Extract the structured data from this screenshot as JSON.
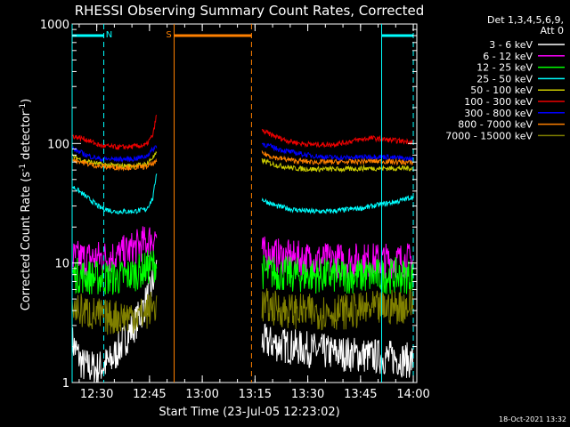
{
  "chart_data": {
    "type": "line",
    "title": "RHESSI Observing Summary Count Rates, Corrected",
    "xlabel": "Start Time (23-Jul-05 12:23:02)",
    "ylabel": "Corrected Count Rate (s⁻¹ detector⁻¹)",
    "ylabel_parts": [
      "Corrected Count Rate (s",
      "-1",
      " detector",
      "-1",
      ")"
    ],
    "yscale": "log",
    "ylim": [
      1,
      1000
    ],
    "xlim": [
      "12:23",
      "14:01"
    ],
    "x_ticks": [
      "12:30",
      "12:45",
      "13:00",
      "13:15",
      "13:30",
      "13:45",
      "14:00"
    ],
    "y_ticks": [
      "1",
      "10",
      "100",
      "1000"
    ],
    "legend_header": [
      "Det 1,3,4,5,6,9,",
      "Att 0"
    ],
    "legend_position": "right",
    "date_stamp": "18-Oct-2021 13:32",
    "series": [
      {
        "name": "3 - 6 keV",
        "color": "#ffffff",
        "segments": [
          {
            "x": [
              "12:23",
              "12:26",
              "12:30",
              "12:34",
              "12:38",
              "12:42",
              "12:45",
              "12:47"
            ],
            "y": [
              2.2,
              1.4,
              1.3,
              1.5,
              2.3,
              3.5,
              5.5,
              9
            ]
          },
          {
            "x": [
              "13:17",
              "13:25",
              "13:35",
              "13:45",
              "13:55",
              "14:00"
            ],
            "y": [
              2.2,
              2.0,
              1.8,
              1.7,
              1.6,
              1.5
            ]
          }
        ]
      },
      {
        "name": "6 - 12 keV",
        "color": "#ff00ff",
        "segments": [
          {
            "x": [
              "12:23",
              "12:30",
              "12:36",
              "12:40",
              "12:44",
              "12:47"
            ],
            "y": [
              11,
              11,
              11.5,
              13,
              15,
              17
            ]
          },
          {
            "x": [
              "13:17",
              "13:25",
              "13:35",
              "13:45",
              "13:55",
              "14:00"
            ],
            "y": [
              12,
              11,
              10.5,
              10.5,
              10.5,
              10.5
            ]
          }
        ]
      },
      {
        "name": "12 - 25 keV",
        "color": "#00ff00",
        "segments": [
          {
            "x": [
              "12:23",
              "12:30",
              "12:36",
              "12:40",
              "12:44",
              "12:47"
            ],
            "y": [
              8,
              7.5,
              7.5,
              8,
              9,
              10
            ]
          },
          {
            "x": [
              "13:17",
              "13:25",
              "13:35",
              "13:45",
              "13:55",
              "14:00"
            ],
            "y": [
              8.5,
              8,
              7.8,
              7.8,
              7.8,
              7.8
            ]
          }
        ]
      },
      {
        "name": "25 - 50 keV",
        "color": "#00ffff",
        "segments": [
          {
            "x": [
              "12:23",
              "12:27",
              "12:31",
              "12:35",
              "12:40",
              "12:44",
              "12:46",
              "12:47"
            ],
            "y": [
              44,
              36,
              29,
              27,
              27,
              28,
              35,
              58
            ]
          },
          {
            "x": [
              "13:17",
              "13:21",
              "13:26",
              "13:31",
              "13:36",
              "13:41",
              "13:46",
              "13:51",
              "13:56",
              "14:00"
            ],
            "y": [
              34,
              30,
              28,
              27,
              27,
              28,
              29,
              31,
              33,
              36
            ]
          }
        ]
      },
      {
        "name": "50 - 100 keV",
        "color": "#cccc00",
        "segments": [
          {
            "x": [
              "12:23",
              "12:27",
              "12:31",
              "12:36",
              "12:40",
              "12:44",
              "12:47"
            ],
            "y": [
              78,
              71,
              67,
              65,
              65,
              67,
              82
            ]
          },
          {
            "x": [
              "13:17",
              "13:21",
              "13:26",
              "13:31",
              "13:36",
              "13:41",
              "13:46",
              "13:51",
              "13:56",
              "14:00"
            ],
            "y": [
              72,
              66,
              62,
              61,
              61,
              61,
              62,
              62,
              62,
              62
            ]
          }
        ]
      },
      {
        "name": "100 - 300 keV",
        "color": "#ee0000",
        "segments": [
          {
            "x": [
              "12:23",
              "12:27",
              "12:31",
              "12:36",
              "12:40",
              "12:44",
              "12:46",
              "12:47"
            ],
            "y": [
              116,
              108,
              96,
              93,
              94,
              97,
              118,
              175
            ]
          },
          {
            "x": [
              "13:17",
              "13:20",
              "13:24",
              "13:28",
              "13:32",
              "13:36",
              "13:40",
              "13:44",
              "13:48",
              "13:52",
              "13:56",
              "14:00"
            ],
            "y": [
              128,
              117,
              106,
              100,
              98,
              98,
              101,
              107,
              111,
              108,
              105,
              103
            ]
          }
        ]
      },
      {
        "name": "300 - 800 keV",
        "color": "#0000ff",
        "segments": [
          {
            "x": [
              "12:23",
              "12:27",
              "12:31",
              "12:36",
              "12:40",
              "12:44",
              "12:47"
            ],
            "y": [
              91,
              80,
              74,
              74,
              74,
              78,
              96
            ]
          },
          {
            "x": [
              "13:17",
              "13:21",
              "13:25",
              "13:30",
              "13:35",
              "13:40",
              "13:45",
              "13:50",
              "13:55",
              "14:00"
            ],
            "y": [
              100,
              91,
              85,
              80,
              77,
              76,
              77,
              78,
              76,
              74
            ]
          }
        ]
      },
      {
        "name": "800 - 7000 keV",
        "color": "#ff8000",
        "segments": [
          {
            "x": [
              "12:23",
              "12:27",
              "12:31",
              "12:36",
              "12:40",
              "12:44",
              "12:47"
            ],
            "y": [
              74,
              68,
              64,
              63,
              63,
              64,
              70
            ]
          },
          {
            "x": [
              "13:17",
              "13:21",
              "13:26",
              "13:31",
              "13:36",
              "13:41",
              "13:46",
              "13:51",
              "13:56",
              "14:00"
            ],
            "y": [
              83,
              76,
              72,
              70,
              70,
              70,
              71,
              71,
              70,
              69
            ]
          }
        ]
      },
      {
        "name": "7000 - 15000 keV",
        "color": "#808000",
        "segments": [
          {
            "x": [
              "12:23",
              "12:28",
              "12:33",
              "12:38",
              "12:43",
              "12:47"
            ],
            "y": [
              4.2,
              3.8,
              3.5,
              3.6,
              3.7,
              4.5
            ]
          },
          {
            "x": [
              "13:17",
              "13:24",
              "13:31",
              "13:38",
              "13:45",
              "13:52",
              "14:00"
            ],
            "y": [
              4.4,
              4.0,
              3.9,
              3.9,
              4.0,
              4.2,
              4.5
            ]
          }
        ]
      }
    ],
    "annotations": [
      {
        "label": "N",
        "color": "#00ffff",
        "span": [
          "12:23",
          "12:32"
        ],
        "level": 800,
        "bounds": [
          "12:23",
          "12:32"
        ]
      },
      {
        "label": "",
        "color": "#00ffff",
        "span": [
          "13:51",
          "14:00"
        ],
        "level": 800,
        "bounds": [
          "13:51",
          "14:00"
        ]
      },
      {
        "label": "S",
        "color": "#ff8000",
        "span": [
          "12:52",
          "13:14"
        ],
        "level": 800,
        "bounds": [
          "12:52",
          "13:14"
        ]
      }
    ]
  }
}
